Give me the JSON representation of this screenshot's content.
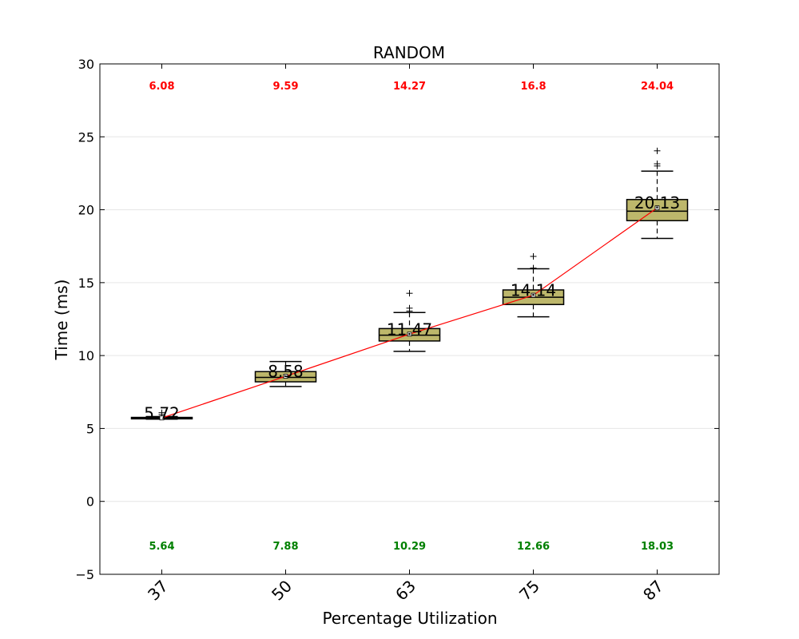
{
  "chart_data": {
    "type": "box",
    "title": "RANDOM",
    "xlabel": "Percentage Utilization",
    "ylabel": "Time (ms)",
    "ylim": [
      -5,
      30
    ],
    "yticks": [
      -5,
      0,
      5,
      10,
      15,
      20,
      25,
      30
    ],
    "grid": "horizontal",
    "categories": [
      "37",
      "50",
      "63",
      "75",
      "87"
    ],
    "boxes": [
      {
        "whisker_low": 5.64,
        "q1": 5.66,
        "median": 5.7,
        "q3": 5.76,
        "whisker_high": 5.82,
        "outliers": [
          5.95,
          6.08
        ],
        "mean": 5.72,
        "mean_label": "5.72",
        "max_label": "6.08",
        "min_label": "5.64"
      },
      {
        "whisker_low": 7.88,
        "q1": 8.2,
        "median": 8.5,
        "q3": 8.9,
        "whisker_high": 9.59,
        "outliers": [],
        "mean": 8.58,
        "mean_label": "8.58",
        "max_label": "9.59",
        "min_label": "7.88"
      },
      {
        "whisker_low": 10.29,
        "q1": 11.0,
        "median": 11.4,
        "q3": 11.85,
        "whisker_high": 12.95,
        "outliers": [
          13.05,
          13.25,
          14.27
        ],
        "mean": 11.47,
        "mean_label": "11.47",
        "max_label": "14.27",
        "min_label": "10.29"
      },
      {
        "whisker_low": 12.66,
        "q1": 13.5,
        "median": 14.0,
        "q3": 14.5,
        "whisker_high": 15.95,
        "outliers": [
          16.0,
          16.8
        ],
        "mean": 14.14,
        "mean_label": "14.14",
        "max_label": "16.8",
        "min_label": "12.66"
      },
      {
        "whisker_low": 18.03,
        "q1": 19.25,
        "median": 19.9,
        "q3": 20.7,
        "whisker_high": 22.65,
        "outliers": [
          23.0,
          23.15,
          24.04
        ],
        "mean": 20.13,
        "mean_label": "20.13",
        "max_label": "24.04",
        "min_label": "18.03"
      }
    ],
    "mean_line": [
      5.72,
      8.58,
      11.47,
      14.14,
      20.13
    ],
    "colors": {
      "box_fill": "#bdb76b",
      "mean_line": "#ff0000",
      "max_text": "#ff0000",
      "min_text": "#008000",
      "grid": "#e6e6e6"
    }
  }
}
